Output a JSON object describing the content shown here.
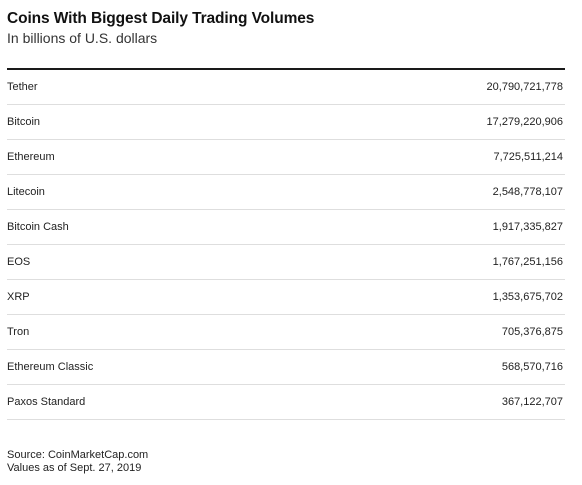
{
  "chart_data": {
    "type": "table",
    "title": "Coins With Biggest Daily Trading Volumes",
    "subtitle": "In billions of U.S. dollars",
    "rows": [
      {
        "name": "Tether",
        "value": "20,790,721,778"
      },
      {
        "name": "Bitcoin",
        "value": "17,279,220,906"
      },
      {
        "name": "Ethereum",
        "value": "7,725,511,214"
      },
      {
        "name": "Litecoin",
        "value": "2,548,778,107"
      },
      {
        "name": "Bitcoin Cash",
        "value": "1,917,335,827"
      },
      {
        "name": "EOS",
        "value": "1,767,251,156"
      },
      {
        "name": "XRP",
        "value": "1,353,675,702"
      },
      {
        "name": "Tron",
        "value": "705,376,875"
      },
      {
        "name": "Ethereum Classic",
        "value": "568,570,716"
      },
      {
        "name": "Paxos Standard",
        "value": "367,122,707"
      }
    ],
    "source": "Source: CoinMarketCap.com",
    "note": "Values as of Sept. 27, 2019"
  }
}
